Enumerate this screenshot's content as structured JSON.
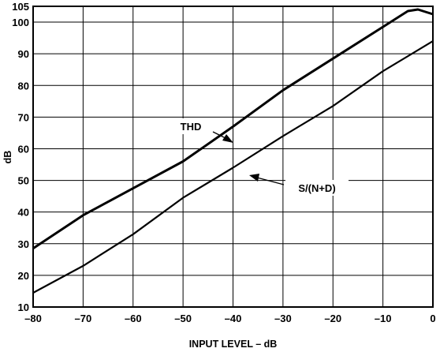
{
  "chart_data": {
    "type": "line",
    "title": "",
    "xlabel": "INPUT LEVEL – dB",
    "ylabel": "dB",
    "xlim": [
      -80,
      0
    ],
    "ylim": [
      10,
      105
    ],
    "x_ticks": [
      -80,
      -70,
      -60,
      -50,
      -40,
      -30,
      -20,
      -10,
      0
    ],
    "x_tick_labels": [
      "–80",
      "–70",
      "–60",
      "–50",
      "–40",
      "–30",
      "–20",
      "–10",
      "0"
    ],
    "y_ticks": [
      10,
      20,
      30,
      40,
      50,
      60,
      70,
      80,
      90,
      100,
      105
    ],
    "grid": true,
    "legend": "none",
    "series": [
      {
        "name": "THD",
        "color": "#000000",
        "x": [
          -80,
          -70,
          -60,
          -50,
          -40,
          -30,
          -20,
          -10,
          -5,
          -3,
          -1,
          0
        ],
        "y": [
          28.5,
          39,
          47.5,
          56,
          67,
          78.5,
          88.5,
          98.5,
          103.5,
          104,
          103,
          102.5
        ]
      },
      {
        "name": "S/(N+D)",
        "color": "#000000",
        "x": [
          -80,
          -70,
          -60,
          -50,
          -40,
          -30,
          -20,
          -10,
          0
        ],
        "y": [
          14.5,
          23,
          33,
          44.5,
          54,
          64,
          73.5,
          84.5,
          94
        ]
      }
    ],
    "annotations": [
      {
        "text": "THD",
        "series": "THD"
      },
      {
        "text": "S/(N+D)",
        "series": "S/(N+D)"
      }
    ]
  }
}
